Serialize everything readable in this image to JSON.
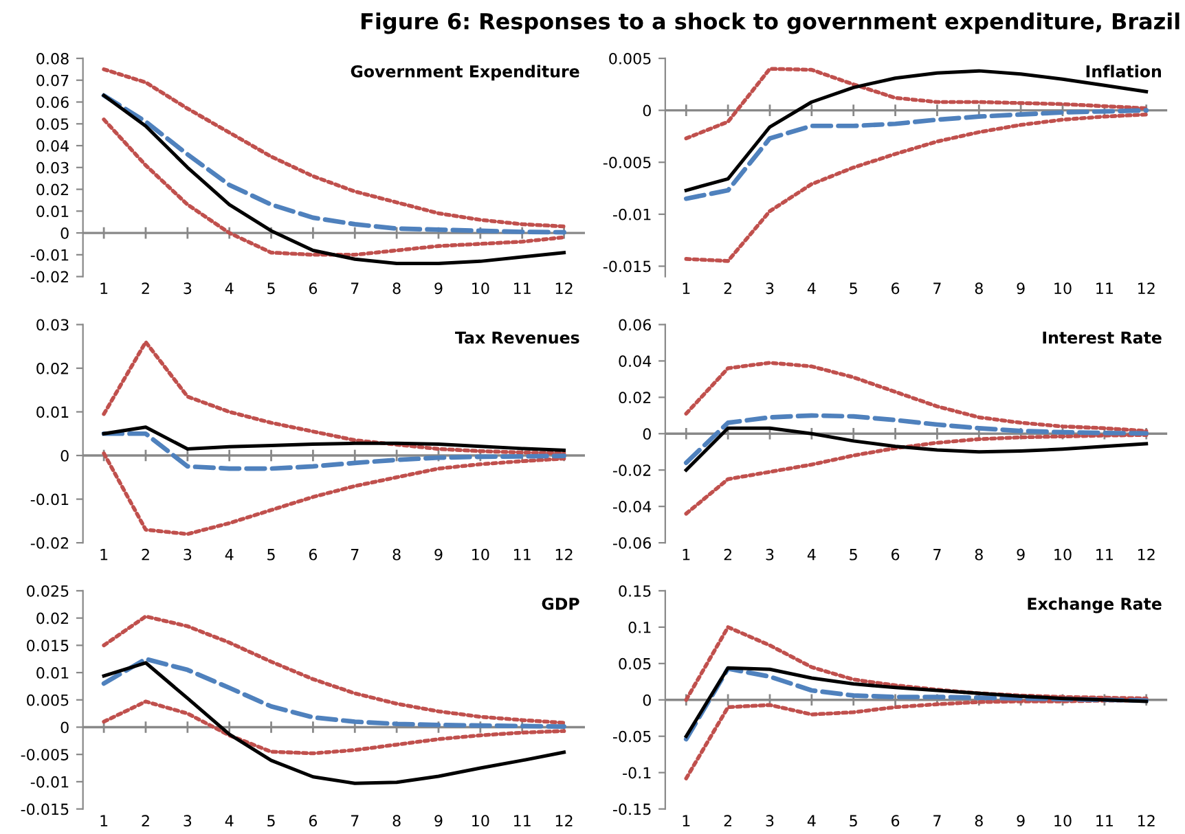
{
  "chart_data": [
    {
      "type": "line",
      "ref_lines": [
        {
          "axis": "y",
          "value": 0,
          "color": "#888888"
        }
      ],
      "title": "Government Expenditure",
      "annotations": [
        "Figure 6: Responses to a shock to government expenditure, Brazil"
      ],
      "categories": [
        "1",
        "2",
        "3",
        "4",
        "5",
        "6",
        "7",
        "8",
        "9",
        "10",
        "11",
        "12"
      ],
      "ylim": [
        -0.02,
        0.08
      ],
      "yticks": [
        -0.02,
        -0.01,
        0,
        0.01,
        0.02,
        0.03,
        0.04,
        0.05,
        0.06,
        0.07,
        0.08
      ],
      "grid": false,
      "legend": false,
      "marker": "none",
      "series": [
        {
          "color": "#c0504d",
          "line_style": "dotted",
          "values": [
            0.075,
            0.069,
            0.057,
            0.046,
            0.035,
            0.026,
            0.019,
            0.014,
            0.009,
            0.006,
            0.004,
            0.003
          ]
        },
        {
          "color": "#c0504d",
          "line_style": "dotted",
          "values": [
            0.052,
            0.031,
            0.013,
            0.0,
            -0.009,
            -0.01,
            -0.01,
            -0.008,
            -0.006,
            -0.005,
            -0.004,
            -0.002
          ]
        },
        {
          "color": "#4f81bd",
          "line_style": "dashed",
          "values": [
            0.063,
            0.051,
            0.036,
            0.022,
            0.013,
            0.007,
            0.004,
            0.002,
            0.0015,
            0.001,
            0.0005,
            0.0003
          ]
        },
        {
          "color": "#000000",
          "line_style": "solid",
          "values": [
            0.063,
            0.049,
            0.03,
            0.013,
            0.001,
            -0.008,
            -0.012,
            -0.014,
            -0.014,
            -0.013,
            -0.011,
            -0.009
          ]
        }
      ]
    },
    {
      "type": "line",
      "ref_lines": [
        {
          "axis": "y",
          "value": 0,
          "color": "#888888"
        }
      ],
      "title": "Inflation",
      "categories": [
        "1",
        "2",
        "3",
        "4",
        "5",
        "6",
        "7",
        "8",
        "9",
        "10",
        "11",
        "12"
      ],
      "ylim": [
        -0.016,
        0.005
      ],
      "yticks": [
        -0.015,
        -0.01,
        -0.005,
        0,
        0.005
      ],
      "grid": false,
      "legend": false,
      "marker": "none",
      "series": [
        {
          "color": "#c0504d",
          "line_style": "dotted",
          "values": [
            -0.0027,
            -0.0011,
            0.004,
            0.0039,
            0.0025,
            0.0012,
            0.0008,
            0.0008,
            0.0007,
            0.0006,
            0.0004,
            0.0002
          ]
        },
        {
          "color": "#c0504d",
          "line_style": "dotted",
          "values": [
            -0.0143,
            -0.0145,
            -0.0097,
            -0.0071,
            -0.0055,
            -0.0042,
            -0.003,
            -0.0021,
            -0.0014,
            -0.0009,
            -0.0006,
            -0.0004
          ]
        },
        {
          "color": "#4f81bd",
          "line_style": "dashed",
          "values": [
            -0.0085,
            -0.0077,
            -0.0027,
            -0.0015,
            -0.0015,
            -0.0013,
            -0.0009,
            -0.0006,
            -0.0004,
            -0.0002,
            -0.0001,
            0.0
          ]
        },
        {
          "color": "#000000",
          "line_style": "solid",
          "values": [
            -0.0077,
            -0.0066,
            -0.0016,
            0.0008,
            0.0022,
            0.0031,
            0.0036,
            0.0038,
            0.0035,
            0.003,
            0.0024,
            0.0018
          ]
        }
      ]
    },
    {
      "type": "line",
      "ref_lines": [
        {
          "axis": "y",
          "value": 0,
          "color": "#888888"
        }
      ],
      "title": "Tax Revenues",
      "categories": [
        "1",
        "2",
        "3",
        "4",
        "5",
        "6",
        "7",
        "8",
        "9",
        "10",
        "11",
        "12"
      ],
      "ylim": [
        -0.02,
        0.03
      ],
      "yticks": [
        -0.02,
        -0.01,
        0,
        0.01,
        0.02,
        0.03
      ],
      "grid": false,
      "legend": false,
      "marker": "none",
      "series": [
        {
          "color": "#c0504d",
          "line_style": "dotted",
          "values": [
            0.0095,
            0.026,
            0.0135,
            0.01,
            0.0075,
            0.0055,
            0.0035,
            0.0025,
            0.0015,
            0.001,
            0.0007,
            0.0005
          ]
        },
        {
          "color": "#c0504d",
          "line_style": "dotted",
          "values": [
            0.0005,
            -0.017,
            -0.018,
            -0.0155,
            -0.0125,
            -0.0095,
            -0.007,
            -0.005,
            -0.003,
            -0.002,
            -0.0013,
            -0.0007
          ]
        },
        {
          "color": "#4f81bd",
          "line_style": "dashed",
          "values": [
            0.005,
            0.005,
            -0.0025,
            -0.003,
            -0.003,
            -0.0025,
            -0.0017,
            -0.001,
            -0.0005,
            -0.0003,
            -0.0002,
            -0.0001
          ]
        },
        {
          "color": "#000000",
          "line_style": "solid",
          "values": [
            0.005,
            0.0065,
            0.0015,
            0.002,
            0.0023,
            0.0026,
            0.0028,
            0.0028,
            0.0026,
            0.0021,
            0.0016,
            0.0012
          ]
        }
      ]
    },
    {
      "type": "line",
      "ref_lines": [
        {
          "axis": "y",
          "value": 0,
          "color": "#888888"
        }
      ],
      "title": "Interest Rate",
      "categories": [
        "1",
        "2",
        "3",
        "4",
        "5",
        "6",
        "7",
        "8",
        "9",
        "10",
        "11",
        "12"
      ],
      "ylim": [
        -0.06,
        0.06
      ],
      "yticks": [
        -0.06,
        -0.04,
        -0.02,
        0,
        0.02,
        0.04,
        0.06
      ],
      "grid": false,
      "legend": false,
      "marker": "none",
      "series": [
        {
          "color": "#c0504d",
          "line_style": "dotted",
          "values": [
            0.011,
            0.036,
            0.039,
            0.037,
            0.031,
            0.023,
            0.015,
            0.009,
            0.006,
            0.004,
            0.003,
            0.0015
          ]
        },
        {
          "color": "#c0504d",
          "line_style": "dotted",
          "values": [
            -0.044,
            -0.025,
            -0.021,
            -0.017,
            -0.012,
            -0.008,
            -0.005,
            -0.003,
            -0.002,
            -0.0015,
            -0.001,
            -0.0007
          ]
        },
        {
          "color": "#4f81bd",
          "line_style": "dashed",
          "values": [
            -0.016,
            0.006,
            0.009,
            0.01,
            0.0095,
            0.0075,
            0.005,
            0.003,
            0.0015,
            0.0008,
            0.0004,
            0.0002
          ]
        },
        {
          "color": "#000000",
          "line_style": "solid",
          "values": [
            -0.02,
            0.003,
            0.003,
            0.0,
            -0.004,
            -0.007,
            -0.009,
            -0.01,
            -0.0095,
            -0.0085,
            -0.007,
            -0.0055
          ]
        }
      ]
    },
    {
      "type": "line",
      "ref_lines": [
        {
          "axis": "y",
          "value": 0,
          "color": "#888888"
        }
      ],
      "title": "GDP",
      "categories": [
        "1",
        "2",
        "3",
        "4",
        "5",
        "6",
        "7",
        "8",
        "9",
        "10",
        "11",
        "12"
      ],
      "ylim": [
        -0.015,
        0.025
      ],
      "yticks": [
        -0.015,
        -0.01,
        -0.005,
        0,
        0.005,
        0.01,
        0.015,
        0.02,
        0.025
      ],
      "grid": false,
      "legend": false,
      "marker": "none",
      "series": [
        {
          "color": "#c0504d",
          "line_style": "dotted",
          "values": [
            0.015,
            0.0203,
            0.0185,
            0.0155,
            0.012,
            0.0088,
            0.0062,
            0.0043,
            0.0029,
            0.0019,
            0.0013,
            0.0008
          ]
        },
        {
          "color": "#c0504d",
          "line_style": "dotted",
          "values": [
            0.001,
            0.0047,
            0.0025,
            -0.0015,
            -0.0045,
            -0.0048,
            -0.0042,
            -0.0032,
            -0.0022,
            -0.0015,
            -0.001,
            -0.0007
          ]
        },
        {
          "color": "#4f81bd",
          "line_style": "dashed",
          "values": [
            0.008,
            0.0125,
            0.0105,
            0.0072,
            0.0038,
            0.0018,
            0.001,
            0.0006,
            0.0004,
            0.0003,
            0.0002,
            0.0001
          ]
        },
        {
          "color": "#000000",
          "line_style": "solid",
          "values": [
            0.0094,
            0.0118,
            0.0053,
            -0.0013,
            -0.0061,
            -0.0091,
            -0.0103,
            -0.0101,
            -0.009,
            -0.0075,
            -0.0061,
            -0.0046
          ]
        }
      ]
    },
    {
      "type": "line",
      "ref_lines": [
        {
          "axis": "y",
          "value": 0,
          "color": "#888888"
        }
      ],
      "title": "Exchange Rate",
      "categories": [
        "1",
        "2",
        "3",
        "4",
        "5",
        "6",
        "7",
        "8",
        "9",
        "10",
        "11",
        "12"
      ],
      "ylim": [
        -0.15,
        0.15
      ],
      "yticks": [
        -0.15,
        -0.1,
        -0.05,
        0,
        0.05,
        0.1,
        0.15
      ],
      "grid": false,
      "legend": false,
      "marker": "none",
      "series": [
        {
          "color": "#c0504d",
          "line_style": "dotted",
          "values": [
            0.0,
            0.1,
            0.075,
            0.045,
            0.028,
            0.02,
            0.014,
            0.009,
            0.006,
            0.004,
            0.003,
            0.002
          ]
        },
        {
          "color": "#c0504d",
          "line_style": "dotted",
          "values": [
            -0.108,
            -0.01,
            -0.007,
            -0.02,
            -0.017,
            -0.01,
            -0.006,
            -0.003,
            -0.002,
            -0.002,
            -0.001,
            -0.001
          ]
        },
        {
          "color": "#4f81bd",
          "line_style": "dashed",
          "values": [
            -0.054,
            0.043,
            0.032,
            0.013,
            0.006,
            0.004,
            0.004,
            0.003,
            0.002,
            0.001,
            0.0,
            -0.001
          ]
        },
        {
          "color": "#000000",
          "line_style": "solid",
          "values": [
            -0.05,
            0.044,
            0.042,
            0.03,
            0.022,
            0.017,
            0.013,
            0.009,
            0.005,
            0.002,
            0.0,
            -0.002
          ]
        }
      ]
    }
  ]
}
